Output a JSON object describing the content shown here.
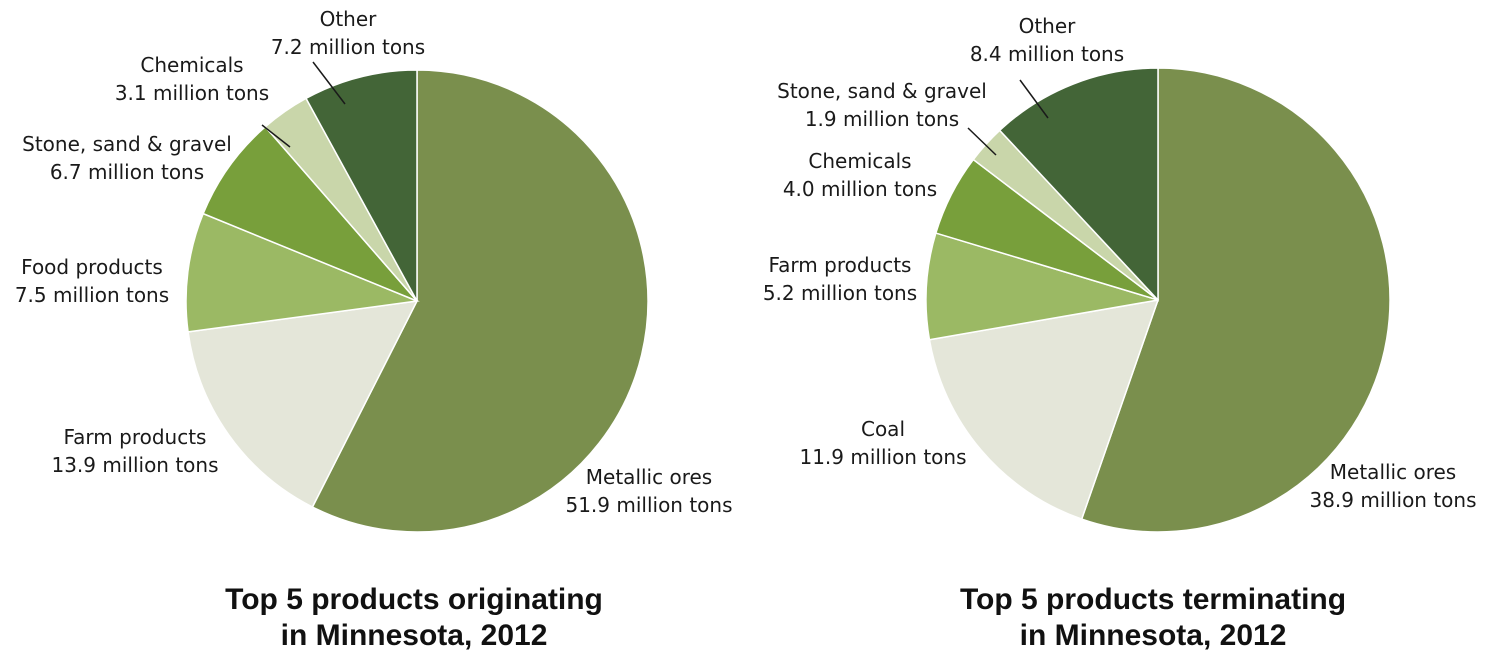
{
  "chart_data": [
    {
      "type": "pie",
      "title_lines": [
        "Top 5 products originating",
        "in Minnesota, 2012"
      ],
      "unit": "million tons",
      "slices": [
        {
          "label": "Metallic ores",
          "value_text": "51.9 million tons",
          "value": 51.9,
          "color": "#7a8f4d"
        },
        {
          "label": "Farm products",
          "value_text": "13.9 million tons",
          "value": 13.9,
          "color": "#e4e6d9"
        },
        {
          "label": "Food products",
          "value_text": "7.5 million tons",
          "value": 7.5,
          "color": "#9bb964"
        },
        {
          "label": "Stone, sand & gravel",
          "value_text": "6.7 million tons",
          "value": 6.7,
          "color": "#789f3b"
        },
        {
          "label": "Chemicals",
          "value_text": "3.1 million tons",
          "value": 3.1,
          "color": "#c9d6aa"
        },
        {
          "label": "Other",
          "value_text": "7.2 million tons",
          "value": 7.2,
          "color": "#436537"
        }
      ]
    },
    {
      "type": "pie",
      "title_lines": [
        "Top 5 products terminating",
        "in Minnesota, 2012"
      ],
      "unit": "million tons",
      "slices": [
        {
          "label": "Metallic ores",
          "value_text": "38.9 million tons",
          "value": 38.9,
          "color": "#7a8f4d"
        },
        {
          "label": "Coal",
          "value_text": "11.9 million tons",
          "value": 11.9,
          "color": "#e4e6d9"
        },
        {
          "label": "Farm products",
          "value_text": "5.2 million tons",
          "value": 5.2,
          "color": "#9bb964"
        },
        {
          "label": "Chemicals",
          "value_text": "4.0 million tons",
          "value": 4.0,
          "color": "#789f3b"
        },
        {
          "label": "Stone, sand & gravel",
          "value_text": "1.9 million tons",
          "value": 1.9,
          "color": "#c9d6aa"
        },
        {
          "label": "Other",
          "value_text": "8.4 million tons",
          "value": 8.4,
          "color": "#436537"
        }
      ]
    }
  ]
}
